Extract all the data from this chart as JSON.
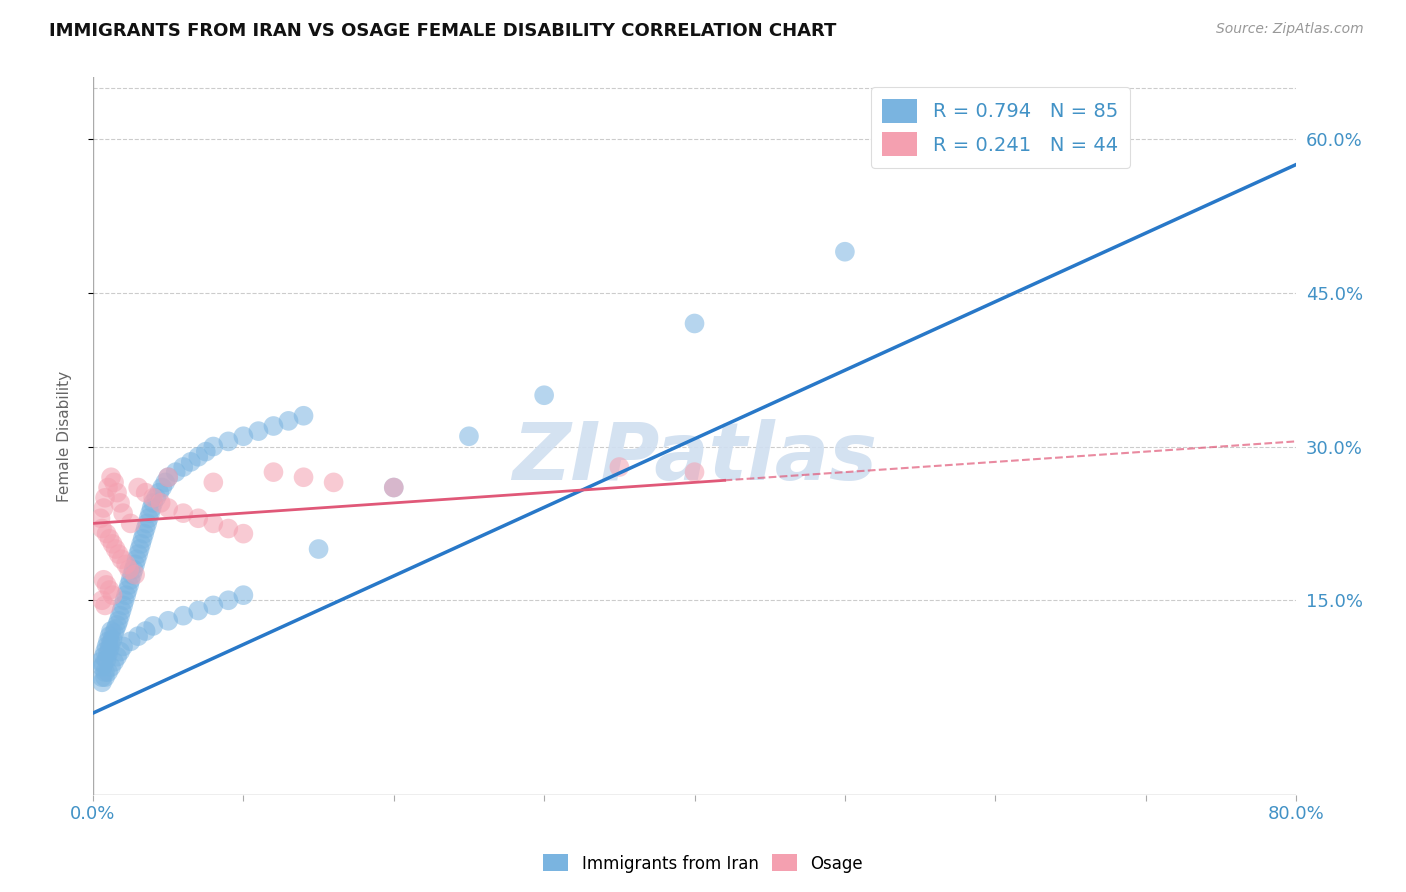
{
  "title": "IMMIGRANTS FROM IRAN VS OSAGE FEMALE DISABILITY CORRELATION CHART",
  "source": "Source: ZipAtlas.com",
  "ylabel": "Female Disability",
  "right_yticks": [
    0.15,
    0.3,
    0.45,
    0.6
  ],
  "right_ytick_labels": [
    "15.0%",
    "30.0%",
    "45.0%",
    "60.0%"
  ],
  "xmin": 0.0,
  "xmax": 0.8,
  "ymin": -0.04,
  "ymax": 0.66,
  "blue_R": 0.794,
  "blue_N": 85,
  "pink_R": 0.241,
  "pink_N": 44,
  "blue_scatter_color": "#7ab4e0",
  "pink_scatter_color": "#f4a0b0",
  "trend_blue_color": "#2878c8",
  "trend_pink_color": "#e05878",
  "watermark_color": "#d0dff0",
  "background_color": "#ffffff",
  "grid_color": "#cccccc",
  "blue_trend_x0": 0.0,
  "blue_trend_x1": 0.8,
  "blue_trend_y0": 0.04,
  "blue_trend_y1": 0.575,
  "pink_trend_x0": 0.0,
  "pink_trend_x1": 0.8,
  "pink_trend_y0": 0.225,
  "pink_trend_y1": 0.305,
  "blue_scatter_x": [
    0.005,
    0.007,
    0.008,
    0.006,
    0.009,
    0.01,
    0.011,
    0.012,
    0.008,
    0.006,
    0.007,
    0.009,
    0.01,
    0.011,
    0.012,
    0.013,
    0.014,
    0.015,
    0.016,
    0.017,
    0.018,
    0.019,
    0.02,
    0.021,
    0.022,
    0.023,
    0.024,
    0.025,
    0.026,
    0.027,
    0.028,
    0.029,
    0.03,
    0.031,
    0.032,
    0.033,
    0.034,
    0.035,
    0.036,
    0.037,
    0.038,
    0.039,
    0.04,
    0.042,
    0.044,
    0.046,
    0.048,
    0.05,
    0.055,
    0.06,
    0.065,
    0.07,
    0.075,
    0.08,
    0.09,
    0.1,
    0.11,
    0.12,
    0.13,
    0.14,
    0.006,
    0.008,
    0.01,
    0.012,
    0.014,
    0.016,
    0.018,
    0.02,
    0.025,
    0.03,
    0.035,
    0.04,
    0.05,
    0.06,
    0.07,
    0.08,
    0.09,
    0.1,
    0.15,
    0.2,
    0.25,
    0.3,
    0.4,
    0.5,
    0.65
  ],
  "blue_scatter_y": [
    0.09,
    0.095,
    0.1,
    0.085,
    0.105,
    0.11,
    0.115,
    0.12,
    0.08,
    0.075,
    0.088,
    0.092,
    0.098,
    0.103,
    0.108,
    0.112,
    0.118,
    0.122,
    0.126,
    0.13,
    0.135,
    0.14,
    0.145,
    0.15,
    0.155,
    0.16,
    0.165,
    0.17,
    0.175,
    0.18,
    0.185,
    0.19,
    0.195,
    0.2,
    0.205,
    0.21,
    0.215,
    0.22,
    0.225,
    0.23,
    0.235,
    0.24,
    0.245,
    0.25,
    0.255,
    0.26,
    0.265,
    0.27,
    0.275,
    0.28,
    0.285,
    0.29,
    0.295,
    0.3,
    0.305,
    0.31,
    0.315,
    0.32,
    0.325,
    0.33,
    0.07,
    0.075,
    0.08,
    0.085,
    0.09,
    0.095,
    0.1,
    0.105,
    0.11,
    0.115,
    0.12,
    0.125,
    0.13,
    0.135,
    0.14,
    0.145,
    0.15,
    0.155,
    0.2,
    0.26,
    0.31,
    0.35,
    0.42,
    0.49,
    0.6
  ],
  "pink_scatter_x": [
    0.005,
    0.007,
    0.008,
    0.01,
    0.012,
    0.014,
    0.016,
    0.018,
    0.02,
    0.025,
    0.006,
    0.009,
    0.011,
    0.013,
    0.015,
    0.017,
    0.019,
    0.022,
    0.024,
    0.028,
    0.03,
    0.035,
    0.04,
    0.045,
    0.05,
    0.06,
    0.07,
    0.08,
    0.09,
    0.1,
    0.12,
    0.14,
    0.16,
    0.2,
    0.007,
    0.009,
    0.011,
    0.013,
    0.05,
    0.08,
    0.006,
    0.008,
    0.35,
    0.4
  ],
  "pink_scatter_y": [
    0.23,
    0.24,
    0.25,
    0.26,
    0.27,
    0.265,
    0.255,
    0.245,
    0.235,
    0.225,
    0.22,
    0.215,
    0.21,
    0.205,
    0.2,
    0.195,
    0.19,
    0.185,
    0.18,
    0.175,
    0.26,
    0.255,
    0.25,
    0.245,
    0.24,
    0.235,
    0.23,
    0.225,
    0.22,
    0.215,
    0.275,
    0.27,
    0.265,
    0.26,
    0.17,
    0.165,
    0.16,
    0.155,
    0.27,
    0.265,
    0.15,
    0.145,
    0.28,
    0.275
  ]
}
